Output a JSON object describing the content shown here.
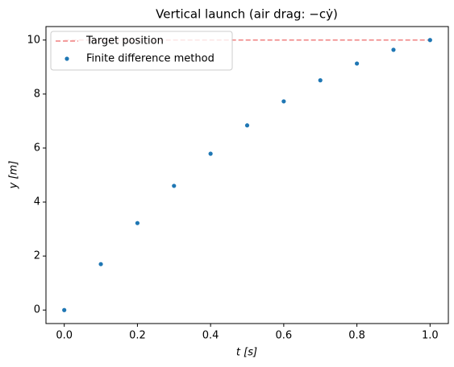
{
  "chart_data": {
    "type": "scatter",
    "title": "Vertical launch (air drag: −cẏ)",
    "x_label": "t [s]",
    "y_label": "y [m]",
    "series": [
      {
        "name": "Target position",
        "color": "#f08080",
        "linestyle": "dashed",
        "x": [
          0,
          1
        ],
        "values": [
          10,
          10
        ]
      },
      {
        "name": "Finite difference method",
        "color": "#1f77b4",
        "marker": "dot",
        "x": [
          0,
          0.1,
          0.2,
          0.3,
          0.4,
          0.5,
          0.6,
          0.7,
          0.8,
          0.9,
          1.0
        ],
        "values": [
          0,
          1.7,
          3.22,
          4.6,
          5.79,
          6.84,
          7.73,
          8.51,
          9.13,
          9.64,
          10
        ]
      }
    ],
    "xlim": [
      -0.05,
      1.05
    ],
    "xticks": [
      {
        "value": 0,
        "label": "0.0"
      },
      0.2,
      0.4,
      0.6,
      0.8,
      {
        "value": 1,
        "label": "1.0"
      }
    ],
    "ylim": [
      -0.5,
      10.5
    ],
    "yticks": [
      0,
      2,
      4,
      6,
      8,
      10
    ],
    "legend": "upper-left",
    "grid": false
  }
}
